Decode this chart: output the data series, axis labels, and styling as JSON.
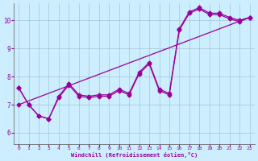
{
  "xlabel": "Windchill (Refroidissement éolien,°C)",
  "background_color": "#cceeff",
  "grid_color": "#99bbcc",
  "line_color": "#990099",
  "xlim": [
    -0.5,
    23.5
  ],
  "ylim": [
    5.6,
    10.6
  ],
  "xticks": [
    0,
    1,
    2,
    3,
    4,
    5,
    6,
    7,
    8,
    9,
    10,
    11,
    12,
    13,
    14,
    15,
    16,
    17,
    18,
    19,
    20,
    21,
    22,
    23
  ],
  "yticks": [
    6,
    7,
    8,
    9,
    10
  ],
  "series1_x": [
    0,
    1,
    2,
    3,
    4,
    5,
    6,
    7,
    8,
    9,
    10,
    11,
    12,
    13,
    14,
    15,
    16,
    17,
    18,
    19,
    20,
    21,
    22,
    23
  ],
  "series1_y": [
    7.6,
    7.0,
    6.6,
    6.5,
    7.25,
    7.7,
    7.3,
    7.25,
    7.3,
    7.3,
    7.5,
    7.35,
    8.1,
    8.45,
    7.5,
    7.35,
    9.65,
    10.25,
    10.4,
    10.2,
    10.2,
    10.05,
    9.95,
    10.1
  ],
  "series2_x": [
    0,
    1,
    2,
    3,
    4,
    5,
    6,
    7,
    8,
    9,
    10,
    11,
    12,
    13,
    14,
    15,
    16,
    17,
    18,
    19,
    20,
    21,
    22,
    23
  ],
  "series2_y": [
    7.6,
    7.0,
    6.6,
    6.5,
    7.3,
    7.75,
    7.35,
    7.3,
    7.35,
    7.35,
    7.55,
    7.4,
    8.15,
    8.5,
    7.55,
    7.4,
    9.7,
    10.3,
    10.45,
    10.25,
    10.25,
    10.1,
    10.0,
    10.1
  ],
  "series3_x": [
    0,
    23
  ],
  "series3_y": [
    7.0,
    10.1
  ],
  "marker": "D",
  "markersize": 2.5,
  "linewidth": 0.9
}
